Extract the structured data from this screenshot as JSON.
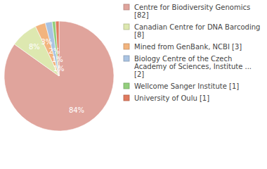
{
  "chart_data": {
    "type": "pie",
    "categories": [
      "Centre for Biodiversity Genomics [82]",
      "Canadian Centre for DNA Barcoding [8]",
      "Mined from GenBank, NCBI [3]",
      "Biology Centre of the Czech Academy of Sciences, Institute ... [2]",
      "Wellcome Sanger Institute [1]",
      "University of Oulu [1]"
    ],
    "values": [
      84,
      8,
      3,
      2,
      1,
      1
    ],
    "value_labels": [
      "84%",
      "8%",
      "3%",
      "2%",
      "1%",
      "1%"
    ],
    "colors": [
      "#e0a49c",
      "#dde8b0",
      "#f2b47e",
      "#a9c3e2",
      "#93cf7d",
      "#e07a5f"
    ],
    "data_labels": true,
    "legend": "upper right"
  }
}
